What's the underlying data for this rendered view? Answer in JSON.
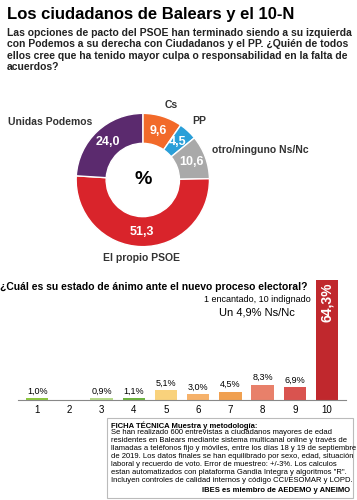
{
  "title": "Los ciudadanos de Balears y el 10-N",
  "chart_data": [
    {
      "type": "pie",
      "title": "Las opciones de pacto del PSOE han terminado siendo a su izquierda con Podemos a su derecha con Ciudadanos y el PP. ¿Quién de todos ellos cree que ha tenido mayor culpa o responsabilidad en la falta de acuerdos?",
      "categories": [
        "Cs",
        "PP",
        "otro/ninguno Ns/Nc",
        "El propio PSOE",
        "Unidas Podemos"
      ],
      "values": [
        9.6,
        4.5,
        10.6,
        51.3,
        24.0
      ],
      "value_labels": [
        "9,6",
        "4,5",
        "10,6",
        "51,3",
        "24,0"
      ],
      "colors": [
        "#f26a2a",
        "#2a9fd8",
        "#a9a9a9",
        "#d9242b",
        "#5b2a6e"
      ],
      "annotation": "%",
      "data_labels": true
    },
    {
      "type": "bar",
      "title": "¿Cuál es su estado de ánimo ante el nuevo proceso electoral?",
      "subtitle": "1 encantado, 10 indignado",
      "annotation": "Un 4,9% Ns/Nc",
      "categories": [
        "1",
        "2",
        "3",
        "4",
        "5",
        "6",
        "7",
        "8",
        "9",
        "10"
      ],
      "values": [
        1.0,
        0,
        0.9,
        1.1,
        5.1,
        3.0,
        4.5,
        8.3,
        6.9,
        64.3
      ],
      "value_labels": [
        "1,0%",
        null,
        "0,9%",
        "1,1%",
        "5,1%",
        "3,0%",
        "4,5%",
        "8,3%",
        "6,9%",
        "64,3%"
      ],
      "colors": [
        "#8cc63f",
        "#a5d16b",
        "#b5d98a",
        "#6db33f",
        "#f9d27c",
        "#f6b26b",
        "#f0a050",
        "#e8806a",
        "#d9534f",
        "#c0282d"
      ],
      "ylim": [
        0,
        64.3
      ],
      "tick_labels": "x",
      "data_labels": true
    }
  ],
  "footnote": {
    "title": "FICHA TÉCNICA Muestra y metodología:",
    "text": "Se han realizado 600 entrevistas a ciudadanos mayores de edad residentes en Balears mediante sistema multicanal online y través de llamadas a teléfonos fijo y móviles, entre los días 18 y 19 de septiembre de 2019. Los datos finales se han equilibrado por sexo, edad, situación laboral y recuerdo de voto. Error de muestreo: +/-3%. Los calculos estan automatizados con plataforma Gandia Integra y algoritmos \"R\". Incluyen controles de calidad internos y código CCI/ESOMAR y LOPD.",
    "brand": "IBES es miembro de AEDEMO y ANEIMO"
  }
}
